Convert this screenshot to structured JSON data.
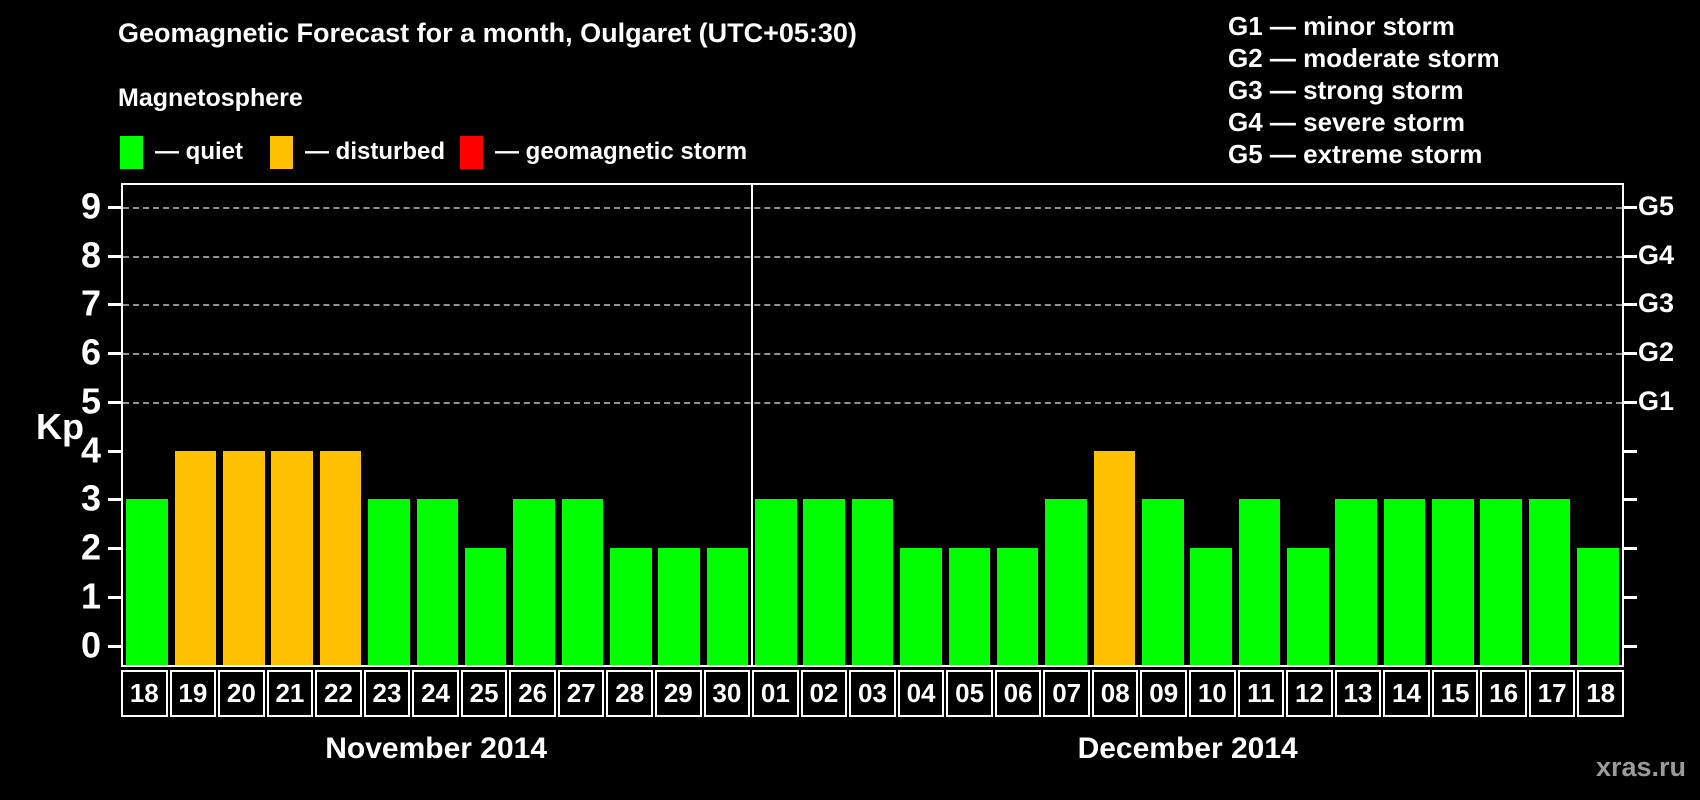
{
  "title": "Geomagnetic Forecast for a month, Oulgaret (UTC+05:30)",
  "subtitle": "Magnetosphere",
  "legend": [
    {
      "name": "quiet",
      "label": "— quiet",
      "color": "#00ff00"
    },
    {
      "name": "disturbed",
      "label": "— disturbed",
      "color": "#ffc000"
    },
    {
      "name": "storm",
      "label": "— geomagnetic storm",
      "color": "#ff0000"
    }
  ],
  "storm_scale": [
    {
      "code": "G1",
      "text": "G1 — minor storm"
    },
    {
      "code": "G2",
      "text": "G2 — moderate storm"
    },
    {
      "code": "G3",
      "text": "G3 — strong storm"
    },
    {
      "code": "G4",
      "text": "G4 — severe storm"
    },
    {
      "code": "G5",
      "text": "G5 — extreme storm"
    }
  ],
  "watermark": "xras.ru",
  "chart_data": {
    "type": "bar",
    "title": "Geomagnetic Forecast for a month, Oulgaret (UTC+05:30)",
    "ylabel": "Kp",
    "ylim": [
      0,
      9
    ],
    "yticks": [
      0,
      1,
      2,
      3,
      4,
      5,
      6,
      7,
      8,
      9
    ],
    "gridlines_kp": [
      5,
      6,
      7,
      8,
      9
    ],
    "grid": "dashed horizontal at Kp 5-9 only",
    "right_axis": [
      {
        "kp": 5,
        "label": "G1"
      },
      {
        "kp": 6,
        "label": "G2"
      },
      {
        "kp": 7,
        "label": "G3"
      },
      {
        "kp": 8,
        "label": "G4"
      },
      {
        "kp": 9,
        "label": "G5"
      }
    ],
    "colors": {
      "quiet": "#00ff00",
      "disturbed": "#ffc000",
      "storm": "#ff0000"
    },
    "months": [
      {
        "label": "November 2014",
        "categories": [
          "18",
          "19",
          "20",
          "21",
          "22",
          "23",
          "24",
          "25",
          "26",
          "27",
          "28",
          "29",
          "30"
        ],
        "values": [
          3,
          4,
          4,
          4,
          4,
          3,
          3,
          2,
          3,
          3,
          2,
          2,
          2
        ],
        "states": [
          "quiet",
          "disturbed",
          "disturbed",
          "disturbed",
          "disturbed",
          "quiet",
          "quiet",
          "quiet",
          "quiet",
          "quiet",
          "quiet",
          "quiet",
          "quiet"
        ]
      },
      {
        "label": "December 2014",
        "categories": [
          "01",
          "02",
          "03",
          "04",
          "05",
          "06",
          "07",
          "08",
          "09",
          "10",
          "11",
          "12",
          "13",
          "14",
          "15",
          "16",
          "17",
          "18"
        ],
        "values": [
          3,
          3,
          3,
          2,
          2,
          2,
          3,
          4,
          3,
          2,
          3,
          2,
          3,
          3,
          3,
          3,
          3,
          2
        ],
        "states": [
          "quiet",
          "quiet",
          "quiet",
          "quiet",
          "quiet",
          "quiet",
          "quiet",
          "disturbed",
          "quiet",
          "quiet",
          "quiet",
          "quiet",
          "quiet",
          "quiet",
          "quiet",
          "quiet",
          "quiet",
          "quiet"
        ]
      }
    ]
  }
}
